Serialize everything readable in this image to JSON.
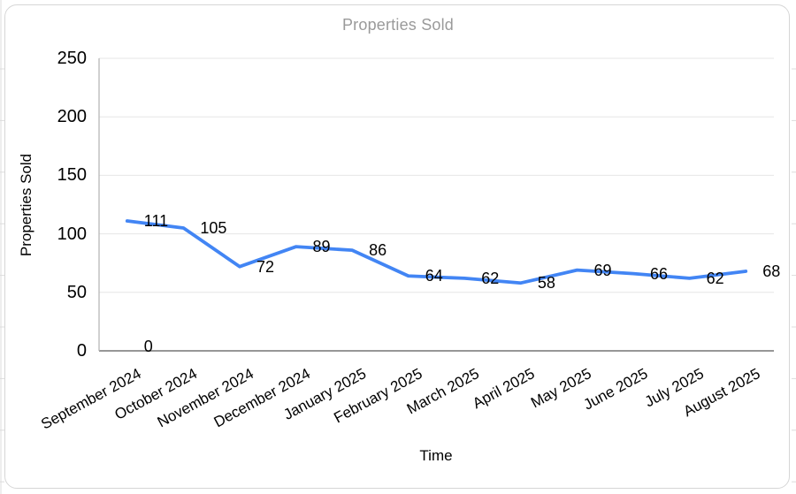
{
  "chart_data": {
    "type": "line",
    "title": "Properties Sold",
    "xlabel": "Time",
    "ylabel": "Properties Sold",
    "categories": [
      "September 2024",
      "October 2024",
      "November 2024",
      "December 2024",
      "January 2025",
      "February 2025",
      "March 2025",
      "April 2025",
      "May 2025",
      "June 2025",
      "July 2025",
      "August 2025"
    ],
    "series": [
      {
        "name": "Properties Sold",
        "values": [
          111,
          105,
          72,
          89,
          86,
          64,
          62,
          58,
          69,
          66,
          62,
          68
        ]
      }
    ],
    "data_labels": [
      "111",
      "105",
      "72",
      "89",
      "86",
      "64",
      "62",
      "58",
      "69",
      "66",
      "62",
      "68"
    ],
    "extra_label": {
      "text": "0",
      "category": "September 2024",
      "value": 0
    },
    "y_ticks": [
      0,
      50,
      100,
      150,
      200,
      250
    ],
    "ylim": [
      0,
      250
    ],
    "grid": true,
    "legend": "none",
    "colors": {
      "line": "#4285f4",
      "gridline": "#e6e6e6",
      "baseline": "#888888",
      "y_axis_line": "#b7b7b7",
      "title_text": "#9a9a9a",
      "label_text": "#000000",
      "card_border": "#d6d6d6",
      "background_artifact": "#dcdcdc"
    }
  }
}
